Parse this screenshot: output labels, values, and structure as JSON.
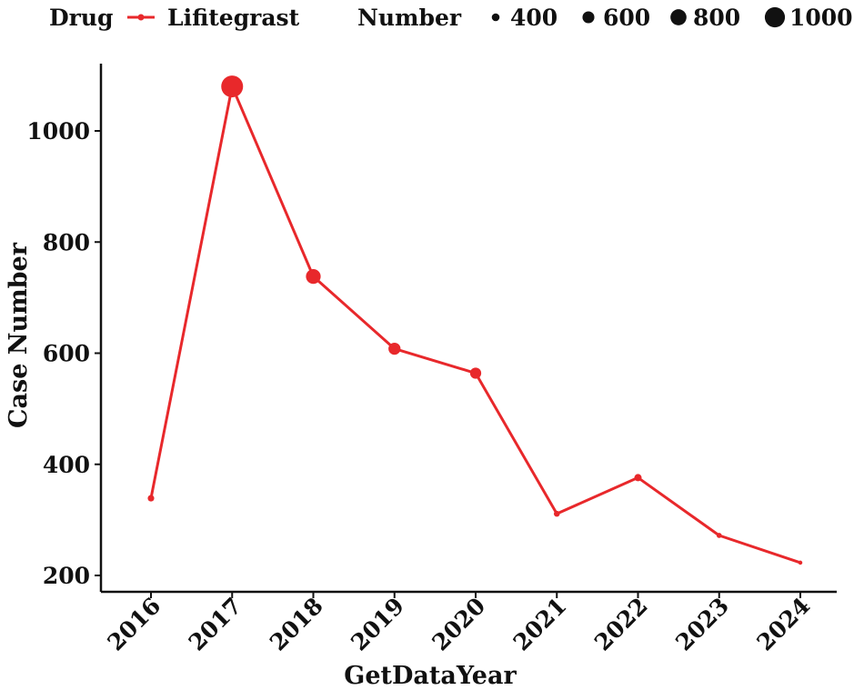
{
  "chart_data": {
    "type": "line",
    "title": "",
    "xlabel": "GetDataYear",
    "ylabel": "Case Number",
    "categories": [
      "2016",
      "2017",
      "2018",
      "2019",
      "2020",
      "2021",
      "2022",
      "2023",
      "2024"
    ],
    "series": [
      {
        "name": "Lifitegrast",
        "color": "#e8282b",
        "values": [
          339,
          1080,
          738,
          608,
          564,
          311,
          376,
          272,
          223
        ]
      }
    ],
    "ylim": [
      180,
      1130
    ],
    "yticks": [
      200,
      400,
      600,
      800,
      1000
    ],
    "point_size_encodes": "Number",
    "grid": false,
    "legend": {
      "position": "top",
      "color_title": "Drug",
      "size_title": "Number",
      "size_values": [
        "400",
        "600",
        "800",
        "1000"
      ]
    }
  }
}
